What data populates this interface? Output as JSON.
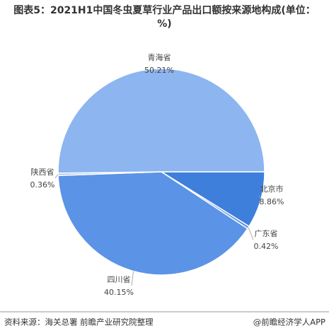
{
  "chart_data": {
    "type": "pie",
    "title": "图表5：2021H1中国冬虫夏草行业产品出口额按来源地构成(单位：%)",
    "categories": [
      "北京市",
      "广东省",
      "四川省",
      "陕西省",
      "青海省"
    ],
    "values": [
      8.86,
      0.42,
      40.15,
      0.36,
      50.21
    ],
    "value_labels": [
      "8.86%",
      "0.42%",
      "40.15%",
      "0.36%",
      "50.21%"
    ],
    "colors": [
      "#3f7fdc",
      "#5a8fdb",
      "#5b93e6",
      "#a9c6f0",
      "#8db5ef"
    ]
  },
  "footer": {
    "source": "资料来源：海关总署 前瞻产业研究院整理",
    "brand": "@前瞻经济学人APP"
  }
}
